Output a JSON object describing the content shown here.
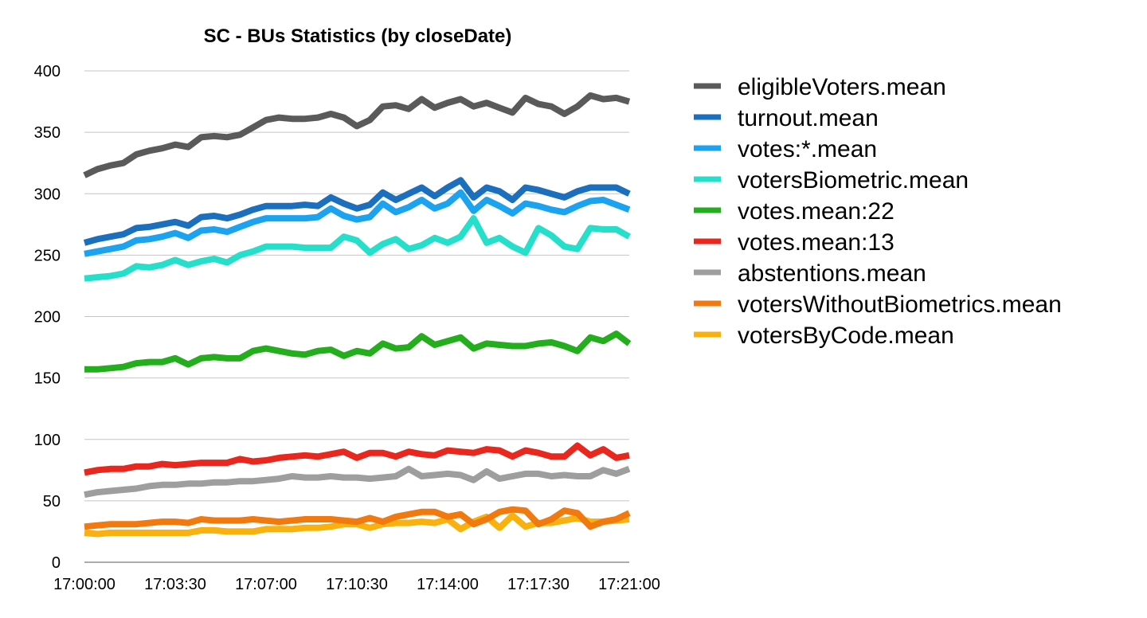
{
  "chart_data": {
    "type": "line",
    "title": "SC - BUs Statistics (by closeDate)",
    "xlabel": "",
    "ylabel": "",
    "ylim": [
      0,
      400
    ],
    "yticks": [
      0,
      50,
      100,
      150,
      200,
      250,
      300,
      350,
      400
    ],
    "grid": true,
    "legend_position": "right",
    "x_tick_labels": [
      "17:00:00",
      "17:03:30",
      "17:07:00",
      "17:10:30",
      "17:14:00",
      "17:17:30",
      "17:21:00"
    ],
    "x_count": 43,
    "series": [
      {
        "name": "eligibleVoters.mean",
        "color": "#5a5a5a",
        "values": [
          315,
          320,
          323,
          325,
          332,
          335,
          337,
          340,
          338,
          346,
          347,
          346,
          348,
          354,
          360,
          362,
          361,
          361,
          362,
          365,
          362,
          355,
          360,
          371,
          372,
          369,
          377,
          370,
          374,
          377,
          371,
          374,
          370,
          366,
          378,
          373,
          371,
          365,
          371,
          380,
          377,
          378,
          375
        ]
      },
      {
        "name": "turnout.mean",
        "color": "#1c6fbd",
        "values": [
          260,
          263,
          265,
          267,
          272,
          273,
          275,
          277,
          274,
          281,
          282,
          280,
          283,
          287,
          290,
          290,
          290,
          291,
          290,
          297,
          292,
          288,
          291,
          301,
          295,
          300,
          305,
          298,
          305,
          311,
          297,
          305,
          302,
          295,
          305,
          303,
          300,
          297,
          302,
          305,
          305,
          305,
          300
        ]
      },
      {
        "name": "votes:*.mean",
        "color": "#1ba3f0",
        "values": [
          251,
          253,
          255,
          257,
          262,
          263,
          265,
          268,
          264,
          270,
          271,
          269,
          273,
          277,
          280,
          280,
          280,
          280,
          281,
          288,
          282,
          279,
          281,
          292,
          285,
          289,
          295,
          288,
          292,
          301,
          286,
          295,
          290,
          284,
          292,
          290,
          287,
          285,
          290,
          294,
          295,
          291,
          287
        ]
      },
      {
        "name": "votersBiometric.mean",
        "color": "#26dfca",
        "values": [
          231,
          232,
          233,
          235,
          241,
          240,
          242,
          246,
          242,
          245,
          247,
          244,
          250,
          253,
          257,
          257,
          257,
          256,
          256,
          256,
          265,
          262,
          252,
          259,
          263,
          255,
          258,
          264,
          260,
          265,
          280,
          260,
          264,
          257,
          252,
          272,
          266,
          257,
          255,
          272,
          271,
          271,
          265
        ]
      },
      {
        "name": "votes.mean:22",
        "color": "#24ad1d",
        "values": [
          157,
          157,
          158,
          159,
          162,
          163,
          163,
          166,
          161,
          166,
          167,
          166,
          166,
          172,
          174,
          172,
          170,
          169,
          172,
          173,
          168,
          172,
          170,
          178,
          174,
          175,
          184,
          177,
          180,
          183,
          174,
          178,
          177,
          176,
          176,
          178,
          179,
          176,
          172,
          183,
          180,
          186,
          178
        ]
      },
      {
        "name": "votes.mean:13",
        "color": "#e8271f",
        "values": [
          73,
          75,
          76,
          76,
          78,
          78,
          80,
          79,
          80,
          81,
          81,
          81,
          84,
          82,
          83,
          85,
          86,
          87,
          86,
          88,
          90,
          85,
          89,
          89,
          86,
          90,
          88,
          87,
          91,
          90,
          89,
          92,
          91,
          86,
          91,
          89,
          86,
          86,
          95,
          87,
          92,
          85,
          87
        ]
      },
      {
        "name": "abstentions.mean",
        "color": "#9e9e9e",
        "values": [
          55,
          57,
          58,
          59,
          60,
          62,
          63,
          63,
          64,
          64,
          65,
          65,
          66,
          66,
          67,
          68,
          70,
          69,
          69,
          70,
          69,
          69,
          68,
          69,
          70,
          76,
          70,
          71,
          72,
          71,
          67,
          74,
          68,
          70,
          72,
          72,
          70,
          71,
          70,
          70,
          75,
          72,
          76
        ]
      },
      {
        "name": "votersWithoutBiometrics.mean",
        "color": "#f07a10",
        "values": [
          29,
          30,
          31,
          31,
          31,
          32,
          33,
          33,
          32,
          35,
          34,
          34,
          34,
          35,
          34,
          33,
          34,
          35,
          35,
          35,
          34,
          33,
          36,
          33,
          37,
          39,
          41,
          41,
          37,
          39,
          31,
          35,
          41,
          43,
          42,
          31,
          35,
          42,
          40,
          29,
          33,
          35,
          40
        ]
      },
      {
        "name": "votersByCode.mean",
        "color": "#f8b10e",
        "values": [
          24,
          23,
          24,
          24,
          24,
          24,
          24,
          24,
          24,
          26,
          26,
          25,
          25,
          25,
          27,
          27,
          27,
          28,
          28,
          29,
          31,
          31,
          28,
          31,
          32,
          32,
          33,
          32,
          35,
          27,
          33,
          37,
          28,
          38,
          29,
          32,
          32,
          34,
          36,
          33,
          33,
          34,
          35
        ]
      }
    ]
  }
}
